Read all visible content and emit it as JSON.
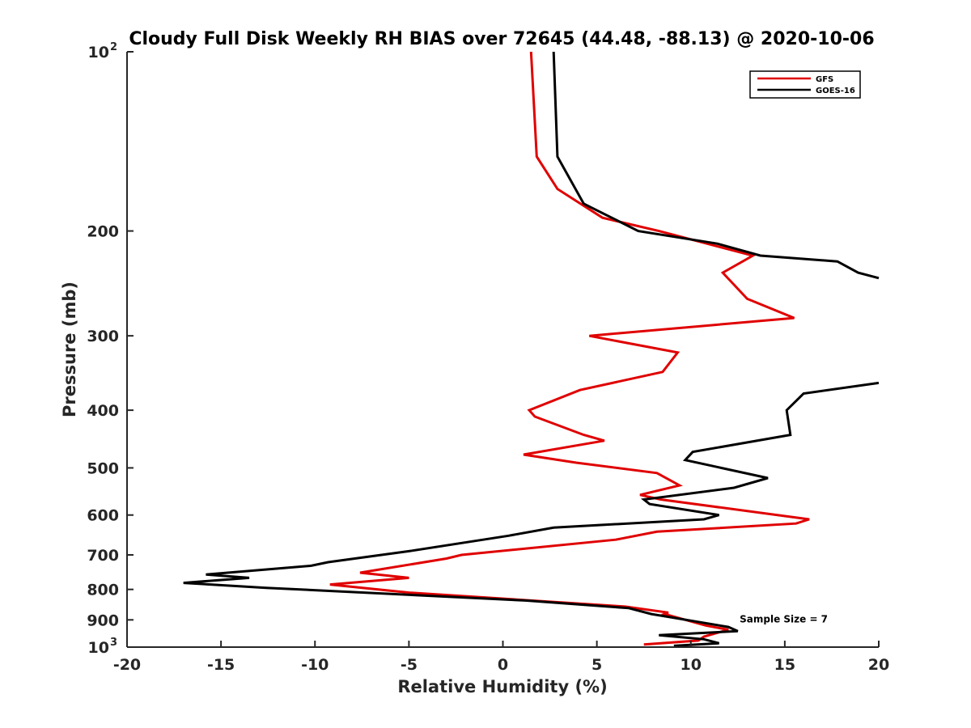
{
  "chart_data": {
    "type": "line",
    "title": "Cloudy Full Disk Weekly RH BIAS over 72645 (44.48, -88.13) @ 2020-10-06",
    "xlabel": "Relative Humidity (%)",
    "ylabel": "Pressure (mb)",
    "xlim": [
      -20,
      20
    ],
    "ylim": [
      100,
      1000
    ],
    "y_scale": "log",
    "y_reversed": true,
    "grid": false,
    "legend_position": "top-right",
    "x_ticks": [
      {
        "value": -20,
        "label": "-20"
      },
      {
        "value": -15,
        "label": "-15"
      },
      {
        "value": -10,
        "label": "-10"
      },
      {
        "value": -5,
        "label": "-5"
      },
      {
        "value": 0,
        "label": "0"
      },
      {
        "value": 5,
        "label": "5"
      },
      {
        "value": 10,
        "label": "10"
      },
      {
        "value": 15,
        "label": "15"
      },
      {
        "value": 20,
        "label": "20"
      }
    ],
    "y_ticks": [
      {
        "value": 100,
        "label": "10",
        "exp": "2"
      },
      {
        "value": 200,
        "label": "200",
        "exp": ""
      },
      {
        "value": 300,
        "label": "300",
        "exp": ""
      },
      {
        "value": 400,
        "label": "400",
        "exp": ""
      },
      {
        "value": 500,
        "label": "500",
        "exp": ""
      },
      {
        "value": 600,
        "label": "600",
        "exp": ""
      },
      {
        "value": 700,
        "label": "700",
        "exp": ""
      },
      {
        "value": 800,
        "label": "800",
        "exp": ""
      },
      {
        "value": 900,
        "label": "900",
        "exp": ""
      },
      {
        "value": 1000,
        "label": "10",
        "exp": "3"
      }
    ],
    "series": [
      {
        "name": "GFS",
        "color": "#e00000",
        "points": [
          [
            1.5,
            100
          ],
          [
            1.8,
            150
          ],
          [
            2.9,
            170
          ],
          [
            5.3,
            190
          ],
          [
            8.3,
            200
          ],
          [
            13.3,
            220
          ],
          [
            11.7,
            235
          ],
          [
            13.0,
            260
          ],
          [
            15.5,
            280
          ],
          [
            4.6,
            300
          ],
          [
            9.3,
            320
          ],
          [
            8.5,
            345
          ],
          [
            4.1,
            370
          ],
          [
            1.4,
            400
          ],
          [
            1.7,
            410
          ],
          [
            4.3,
            440
          ],
          [
            5.4,
            450
          ],
          [
            1.1,
            475
          ],
          [
            3.9,
            490
          ],
          [
            8.2,
            510
          ],
          [
            9.4,
            535
          ],
          [
            7.3,
            555
          ],
          [
            8.4,
            565
          ],
          [
            16.3,
            610
          ],
          [
            15.6,
            620
          ],
          [
            8.2,
            640
          ],
          [
            6.0,
            660
          ],
          [
            -2.2,
            700
          ],
          [
            -3.0,
            710
          ],
          [
            -7.6,
            750
          ],
          [
            -5.0,
            765
          ],
          [
            -9.2,
            785
          ],
          [
            -5.0,
            810
          ],
          [
            6.5,
            855
          ],
          [
            8.8,
            875
          ],
          [
            8.6,
            880
          ],
          [
            10.8,
            920
          ],
          [
            12.0,
            935
          ],
          [
            10.7,
            960
          ],
          [
            10.4,
            975
          ],
          [
            7.5,
            990
          ]
        ]
      },
      {
        "name": "GOES-16",
        "color": "#000000",
        "points": [
          [
            2.7,
            100
          ],
          [
            2.9,
            150
          ],
          [
            4.3,
            180
          ],
          [
            7.2,
            200
          ],
          [
            11.4,
            210
          ],
          [
            13.7,
            220
          ],
          [
            17.8,
            225
          ],
          [
            18.9,
            235
          ],
          [
            20.0,
            240
          ],
          [
            null,
            null
          ],
          [
            20.0,
            360
          ],
          [
            16.0,
            375
          ],
          [
            15.1,
            400
          ],
          [
            15.3,
            440
          ],
          [
            10.1,
            470
          ],
          [
            9.7,
            485
          ],
          [
            14.1,
            520
          ],
          [
            12.3,
            540
          ],
          [
            7.5,
            565
          ],
          [
            7.8,
            575
          ],
          [
            11.5,
            600
          ],
          [
            10.7,
            610
          ],
          [
            2.7,
            630
          ],
          [
            0.3,
            650
          ],
          [
            -5.0,
            690
          ],
          [
            -9.3,
            720
          ],
          [
            -10.2,
            730
          ],
          [
            -15.8,
            755
          ],
          [
            -13.5,
            765
          ],
          [
            -17.0,
            780
          ],
          [
            -12.6,
            795
          ],
          [
            1.2,
            835
          ],
          [
            6.7,
            860
          ],
          [
            7.9,
            880
          ],
          [
            12.0,
            925
          ],
          [
            12.5,
            940
          ],
          [
            8.3,
            955
          ],
          [
            10.7,
            970
          ],
          [
            11.5,
            985
          ],
          [
            9.1,
            995
          ]
        ]
      }
    ],
    "annotations": [
      {
        "text": "Sample Size = 7",
        "x": 12.6,
        "y": 920
      }
    ]
  }
}
